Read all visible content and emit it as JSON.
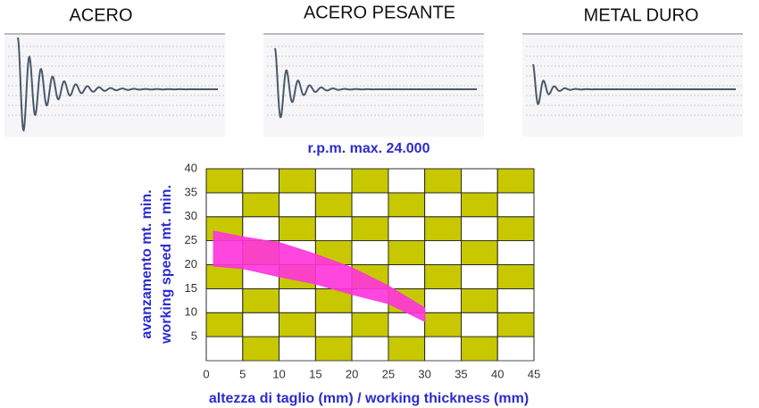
{
  "panels": [
    {
      "title": "ACERO"
    },
    {
      "title": "ACERO PESANTE"
    },
    {
      "title": "METAL DURO"
    }
  ],
  "chart_data": {
    "type": "range-area",
    "title": "r.p.m. max. 24.000",
    "y_label": [
      "avanzamento mt. min.",
      "working speed mt. min."
    ],
    "x_label": "altezza di taglio (mm) / working thickness (mm)",
    "x": [
      1,
      5,
      10,
      15,
      20,
      25,
      30
    ],
    "series": [
      {
        "color": "#ff33dd",
        "values": [
          27,
          25.8,
          24.6,
          22.2,
          19.4,
          15.6,
          11
        ]
      },
      {
        "color": "#ff33dd",
        "values": [
          19.7,
          19.2,
          17.5,
          16,
          13.8,
          11.9,
          8.2
        ]
      }
    ],
    "xlim": [
      0,
      45
    ],
    "ylim": [
      0,
      40
    ],
    "xticks": [
      0,
      5,
      10,
      15,
      20,
      25,
      30,
      35,
      40,
      45
    ],
    "yticks": [
      5,
      10,
      15,
      20,
      25,
      30,
      35,
      40
    ],
    "checker_colors": [
      "#c8c800",
      "#ffffff"
    ]
  }
}
